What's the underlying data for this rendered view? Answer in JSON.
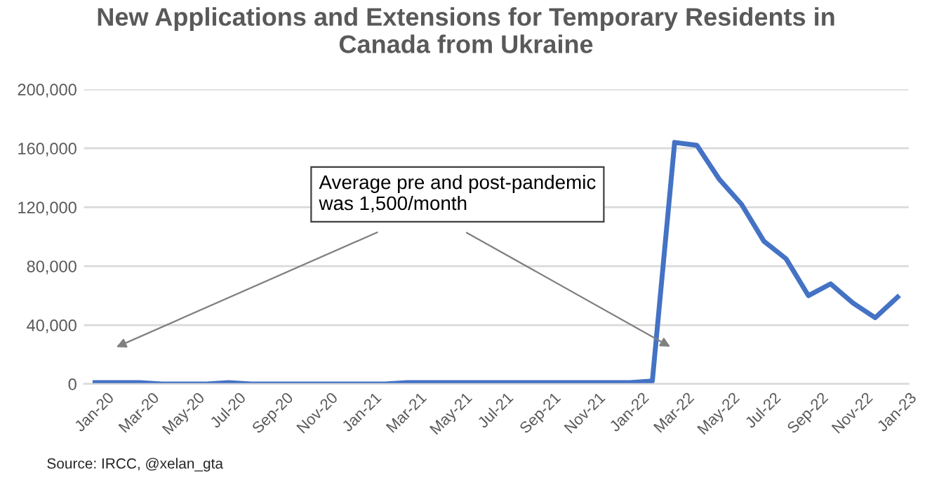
{
  "chart_data": {
    "type": "line",
    "title": "New Applications and Extensions for Temporary Residents in\nCanada from Ukraine",
    "categories": [
      "Jan-20",
      null,
      "Mar-20",
      null,
      "May-20",
      null,
      "Jul-20",
      null,
      "Sep-20",
      null,
      "Nov-20",
      null,
      "Jan-21",
      null,
      "Mar-21",
      null,
      "May-21",
      null,
      "Jul-21",
      null,
      "Sep-21",
      null,
      "Nov-21",
      null,
      "Jan-22",
      null,
      "Mar-22",
      null,
      "May-22",
      null,
      "Jul-22",
      null,
      "Sep-22",
      null,
      "Nov-22",
      null,
      "Jan-23"
    ],
    "series": [
      {
        "color": "#4472c4",
        "values": [
          1000,
          1000,
          1000,
          0,
          0,
          0,
          1000,
          0,
          0,
          0,
          0,
          0,
          0,
          0,
          1000,
          1000,
          1000,
          1000,
          1000,
          1000,
          1000,
          1000,
          1000,
          1000,
          1000,
          2000,
          164000,
          162000,
          139000,
          122000,
          97000,
          85000,
          60000,
          68000,
          55000,
          45000,
          59000
        ]
      }
    ],
    "ylim": [
      0,
      200000
    ],
    "yticks": [
      {
        "value": 0,
        "label": "0"
      },
      {
        "value": 40000,
        "label": "40,000"
      },
      {
        "value": 80000,
        "label": "80,000"
      },
      {
        "value": 120000,
        "label": "120,000"
      },
      {
        "value": 160000,
        "label": "160,000"
      },
      {
        "value": 200000,
        "label": "200,000"
      }
    ],
    "grid": "y",
    "legend": false,
    "annotations": [
      "Average pre and post-pandemic\nwas 1,500/month",
      "Source: IRCC, @xelan_gta"
    ]
  }
}
